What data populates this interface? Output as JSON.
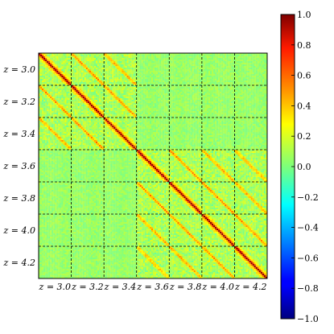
{
  "chart_data": {
    "type": "heatmap",
    "title": "",
    "xlabel": "",
    "ylabel": "",
    "blocks": [
      "z = 3.0",
      "z = 3.2",
      "z = 3.4",
      "z = 3.6",
      "z = 3.8",
      "z = 4.0",
      "z = 4.2"
    ],
    "bins_per_block": 20,
    "colormap": "jet",
    "vmin": -1.0,
    "vmax": 1.0,
    "colorbar_ticks": [
      "1.0",
      "0.8",
      "0.6",
      "0.4",
      "0.2",
      "0.0",
      "−0.2",
      "−0.4",
      "−0.6",
      "−0.8",
      "−1.0"
    ],
    "diagonal_value": 1.0,
    "grid": "dashed block boundaries",
    "correlation_groups": [
      {
        "blocks": [
          "z = 3.0",
          "z = 3.2",
          "z = 3.4"
        ],
        "adjacent_block_correlation": 0.45
      },
      {
        "blocks": [
          "z = 3.6",
          "z = 3.8",
          "z = 4.0",
          "z = 4.2"
        ],
        "adjacent_block_correlation": 0.45
      }
    ],
    "off_diagonal_background": 0.05,
    "colorbar_placement": "right"
  }
}
